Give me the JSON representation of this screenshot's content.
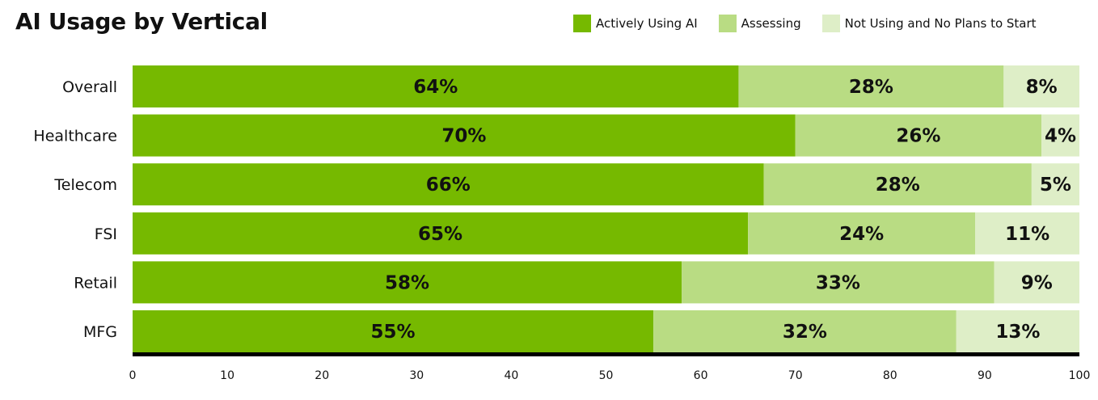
{
  "chart_data": {
    "type": "bar",
    "orientation": "horizontal",
    "stacked": true,
    "title": "AI Usage by Vertical",
    "categories": [
      "Overall",
      "Healthcare",
      "Telecom",
      "FSI",
      "Retail",
      "MFG"
    ],
    "series": [
      {
        "name": "Actively Using AI",
        "color": "#76b900",
        "values": [
          64,
          70,
          66,
          65,
          58,
          55
        ]
      },
      {
        "name": "Assessing",
        "color": "#b9dc83",
        "values": [
          28,
          26,
          28,
          24,
          33,
          32
        ]
      },
      {
        "name": "Not Using and No Plans to Start",
        "color": "#deeec7",
        "values": [
          8,
          4,
          5,
          11,
          9,
          13
        ]
      }
    ],
    "value_labels": [
      [
        "64%",
        "70%",
        "66%",
        "65%",
        "58%",
        "55%"
      ],
      [
        "28%",
        "26%",
        "28%",
        "24%",
        "33%",
        "32%"
      ],
      [
        "8%",
        "4%",
        "5%",
        "11%",
        "9%",
        "13%"
      ]
    ],
    "xlim": [
      0,
      100
    ],
    "xticks": [
      "0",
      "10",
      "20",
      "30",
      "40",
      "50",
      "60",
      "70",
      "80",
      "90",
      "100"
    ],
    "legend_position": "top-right",
    "grid": false
  }
}
